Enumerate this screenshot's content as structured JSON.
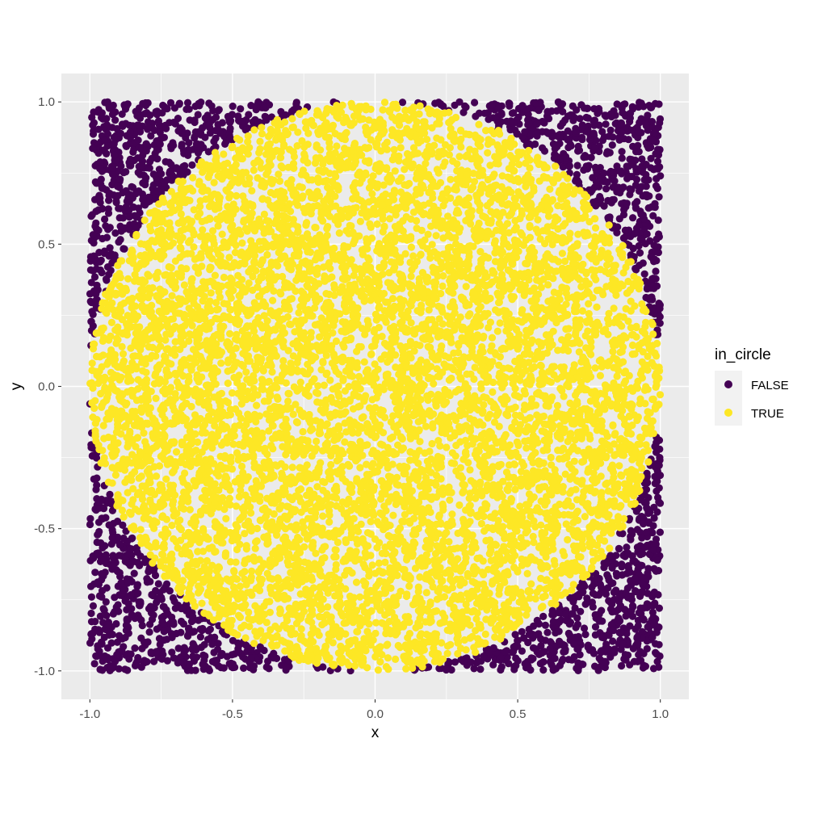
{
  "chart_data": {
    "type": "scatter",
    "xlabel": "x",
    "ylabel": "y",
    "xlim": [
      -1.1,
      1.1
    ],
    "ylim": [
      -1.1,
      1.1
    ],
    "x_ticks": [
      "-1.0",
      "-0.5",
      "0.0",
      "0.5",
      "1.0"
    ],
    "y_ticks": [
      "-1.0",
      "-0.5",
      "0.0",
      "0.5",
      "1.0"
    ],
    "grid": true,
    "legend": {
      "title": "in_circle",
      "placement": "right",
      "entries": [
        {
          "label": "FALSE",
          "color": "#440154"
        },
        {
          "label": "TRUE",
          "color": "#FDE725"
        }
      ]
    },
    "series": [
      {
        "name": "FALSE",
        "color": "#440154",
        "rule": "x^2 + y^2 > 1"
      },
      {
        "name": "TRUE",
        "color": "#FDE725",
        "rule": "x^2 + y^2 <= 1"
      }
    ],
    "sampling": {
      "distribution": "uniform",
      "x_range": [
        -1,
        1
      ],
      "y_range": [
        -1,
        1
      ],
      "n_points": 10000
    }
  },
  "colors": {
    "panel_background": "#EBEBEB",
    "grid_major": "#FFFFFF",
    "tick_text": "#4D4D4D",
    "legend_key_background": "#F2F2F2"
  }
}
